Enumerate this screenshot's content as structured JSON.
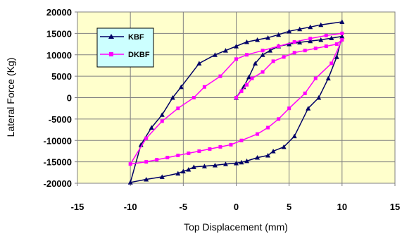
{
  "chart_data": {
    "type": "line",
    "title": "",
    "xlabel": "Top Displacement (mm)",
    "ylabel": "Lateral Force (Kg)",
    "xlim": [
      -15,
      15
    ],
    "ylim": [
      -20000,
      20000
    ],
    "x_ticks": [
      -15,
      -10,
      -5,
      0,
      5,
      10,
      15
    ],
    "y_ticks": [
      -20000,
      -15000,
      -10000,
      -5000,
      0,
      5000,
      10000,
      15000,
      20000
    ],
    "x_tick_labels": [
      "-15",
      "-10",
      "-5",
      "0",
      "5",
      "10",
      "15"
    ],
    "y_tick_labels": [
      "-20000",
      "-15000",
      "-10000",
      "-5000",
      "0",
      "5000",
      "10000",
      "15000",
      "20000"
    ],
    "grid": true,
    "legend_position": "top-left",
    "plot_background": "#FFFFCC",
    "legend_background": "#CCFFFF",
    "series": [
      {
        "name": "KBF",
        "color": "#000066",
        "marker": "triangle",
        "x": [
          0,
          0.7,
          1.2,
          1.8,
          2.5,
          3.2,
          4.0,
          5.0,
          6.0,
          7.0,
          8.0,
          9.0,
          10,
          9.5,
          8.7,
          7.8,
          6.8,
          5.5,
          4.5,
          3.5,
          3.0,
          2.0,
          1.0,
          0.5,
          0,
          -1.0,
          -2.0,
          -3.0,
          -4.0,
          -4.5,
          -5.0,
          -5.5,
          -7.0,
          -8.5,
          -10,
          -9.0,
          -8.0,
          -7.0,
          -6.0,
          -5.2,
          -3.5,
          -2.0,
          -1.0,
          0,
          1.0,
          2.0,
          3.0,
          4.0,
          5.0,
          6.0,
          7.0,
          8.0,
          10
        ],
        "y": [
          0,
          2500,
          4800,
          8000,
          10000,
          11000,
          12000,
          12500,
          12900,
          13200,
          13500,
          13900,
          14300,
          9500,
          4500,
          0,
          -2500,
          -9000,
          -11500,
          -12500,
          -13500,
          -14000,
          -14800,
          -15100,
          -15300,
          -15500,
          -15800,
          -16000,
          -16200,
          -16800,
          -17200,
          -17700,
          -18500,
          -19100,
          -19800,
          -11000,
          -7000,
          -4000,
          0,
          2500,
          8000,
          10000,
          11000,
          12000,
          13000,
          13500,
          14000,
          14700,
          15500,
          16000,
          16500,
          17000,
          17700
        ]
      },
      {
        "name": "DKBF",
        "color": "#FF00FF",
        "marker": "square",
        "x": [
          0,
          0.5,
          1.0,
          1.5,
          2.5,
          3.5,
          4.5,
          5.5,
          6.5,
          7.5,
          8.5,
          9.5,
          10,
          9.0,
          7.5,
          6.5,
          5.0,
          4.0,
          3.0,
          2.0,
          0.5,
          -0.5,
          -1.5,
          -2.5,
          -3.5,
          -4.5,
          -5.5,
          -6.5,
          -7.5,
          -8.5,
          -10,
          -8.5,
          -7.0,
          -5.5,
          -4.0,
          -3.0,
          -1.5,
          0,
          1.0,
          2.5,
          4.0,
          5.5,
          7.0,
          8.5,
          10
        ],
        "y": [
          0,
          1500,
          3000,
          4500,
          6000,
          8500,
          9500,
          10500,
          11000,
          11500,
          12000,
          12500,
          13500,
          8000,
          4500,
          1000,
          -2500,
          -5000,
          -7000,
          -8500,
          -10000,
          -11000,
          -11500,
          -12000,
          -12500,
          -13000,
          -13500,
          -14000,
          -14500,
          -15000,
          -15500,
          -9500,
          -5500,
          -2500,
          0,
          2500,
          5000,
          9000,
          10000,
          11000,
          12000,
          13000,
          13800,
          14500,
          15000
        ]
      }
    ]
  }
}
